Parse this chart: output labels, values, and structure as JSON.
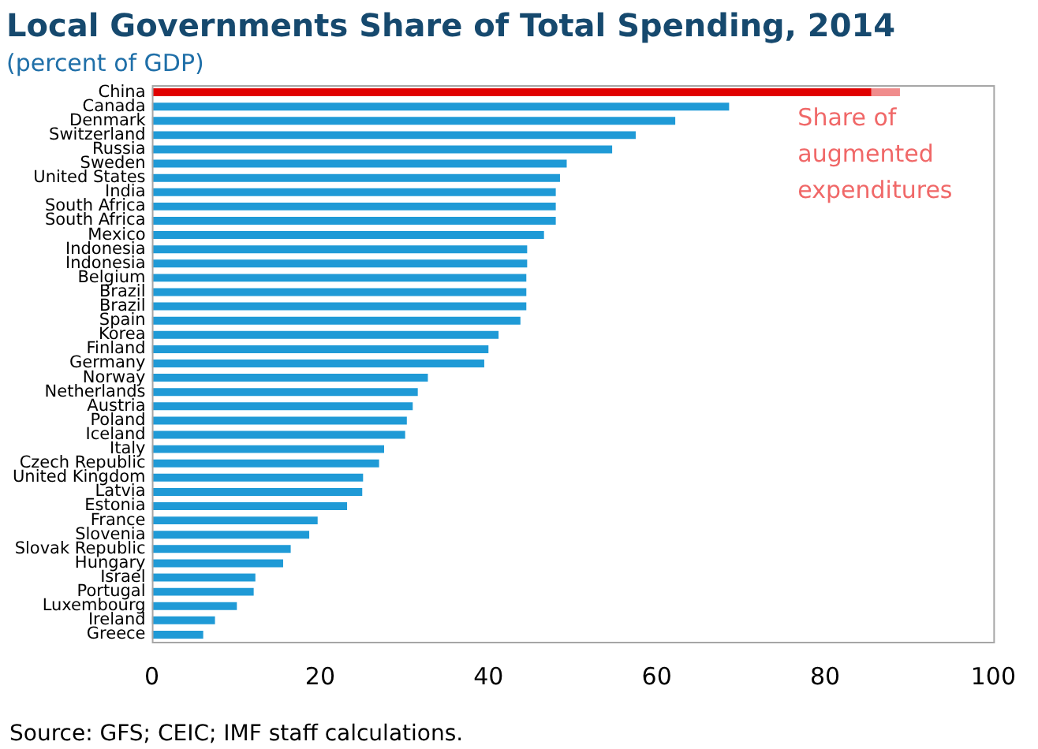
{
  "chart_data": {
    "type": "bar",
    "orientation": "horizontal",
    "stacked": true,
    "title": "Local Governments Share of Total Spending, 2014",
    "subtitle": "(percent of GDP)",
    "categories": [
      "China",
      "Canada",
      "Denmark",
      "Switzerland",
      "Russia",
      "Sweden",
      "United States",
      "India",
      "South Africa",
      "South Africa",
      "Mexico",
      "Indonesia",
      "Indonesia",
      "Belgium",
      "Brazil",
      "Brazil",
      "Spain",
      "Korea",
      "Finland",
      "Germany",
      "Norway",
      "Netherlands",
      "Austria",
      "Poland",
      "Iceland",
      "Italy",
      "Czech Republic",
      "United Kingdom",
      "Latvia",
      "Estonia",
      "France",
      "Slovenia",
      "Slovak Republic",
      "Hungary",
      "Israel",
      "Portugal",
      "Luxembourg",
      "Ireland",
      "Greece"
    ],
    "series": [
      {
        "colors": [
          "#e00000",
          "#1f9ad6",
          "#1f9ad6",
          "#1f9ad6",
          "#1f9ad6",
          "#1f9ad6",
          "#1f9ad6",
          "#1f9ad6",
          "#1f9ad6",
          "#1f9ad6",
          "#1f9ad6",
          "#1f9ad6",
          "#1f9ad6",
          "#1f9ad6",
          "#1f9ad6",
          "#1f9ad6",
          "#1f9ad6",
          "#1f9ad6",
          "#1f9ad6",
          "#1f9ad6",
          "#1f9ad6",
          "#1f9ad6",
          "#1f9ad6",
          "#1f9ad6",
          "#1f9ad6",
          "#1f9ad6",
          "#1f9ad6",
          "#1f9ad6",
          "#1f9ad6",
          "#1f9ad6",
          "#1f9ad6",
          "#1f9ad6",
          "#1f9ad6",
          "#1f9ad6",
          "#1f9ad6",
          "#1f9ad6",
          "#1f9ad6",
          "#1f9ad6",
          "#1f9ad6"
        ],
        "values": [
          85.5,
          68.6,
          62.2,
          57.5,
          54.7,
          49.3,
          48.5,
          48.0,
          48.0,
          48.0,
          46.6,
          44.6,
          44.6,
          44.5,
          44.5,
          44.5,
          43.8,
          41.2,
          40.0,
          39.5,
          32.8,
          31.6,
          31.0,
          30.3,
          30.1,
          27.6,
          27.0,
          25.1,
          25.0,
          23.2,
          19.7,
          18.7,
          16.5,
          15.6,
          12.3,
          12.1,
          10.1,
          7.5,
          6.1
        ]
      },
      {
        "color": "#f08c8c",
        "values": [
          3.4,
          null,
          null,
          null,
          null,
          null,
          null,
          null,
          null,
          null,
          null,
          null,
          null,
          null,
          null,
          null,
          null,
          null,
          null,
          null,
          null,
          null,
          null,
          null,
          null,
          null,
          null,
          null,
          null,
          null,
          null,
          null,
          null,
          null,
          null,
          null,
          null,
          null,
          null
        ]
      }
    ],
    "xlim": [
      0,
      100
    ],
    "xticks": [
      0,
      20,
      40,
      60,
      80,
      100
    ],
    "grid": false,
    "legend": false,
    "annotations": [
      "Share of augmented expenditures",
      "Source: GFS; CEIC; IMF staff calculations."
    ]
  }
}
